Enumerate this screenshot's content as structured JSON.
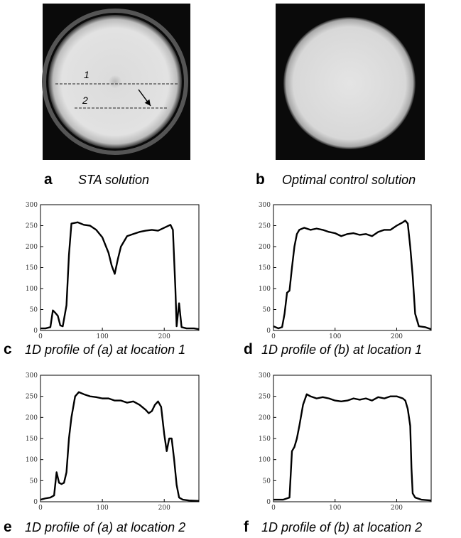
{
  "images": [
    {
      "letter": "a",
      "caption": "STA solution",
      "line_labels": [
        "1",
        "2"
      ]
    },
    {
      "letter": "b",
      "caption": "Optimal control solution"
    }
  ],
  "chart_data": [
    {
      "type": "line",
      "letter": "c",
      "caption": "1D profile of (a) at location 1",
      "color": "#000000",
      "xlim": [
        0,
        256
      ],
      "ylim": [
        0,
        300
      ],
      "xticks": [
        0,
        100,
        200
      ],
      "yticks": [
        0,
        50,
        100,
        150,
        200,
        250,
        300
      ],
      "x": [
        0,
        8,
        16,
        20,
        24,
        28,
        32,
        36,
        42,
        46,
        50,
        60,
        70,
        80,
        90,
        100,
        110,
        115,
        120,
        125,
        130,
        140,
        150,
        160,
        170,
        180,
        190,
        200,
        210,
        214,
        218,
        220,
        224,
        228,
        236,
        248,
        256
      ],
      "values": [
        5,
        5,
        8,
        48,
        42,
        35,
        12,
        10,
        60,
        180,
        255,
        258,
        252,
        250,
        240,
        222,
        185,
        155,
        135,
        170,
        200,
        225,
        230,
        235,
        238,
        240,
        238,
        245,
        252,
        240,
        100,
        10,
        65,
        8,
        5,
        5,
        3
      ]
    },
    {
      "type": "line",
      "letter": "d",
      "caption": "1D profile of (b) at location 1",
      "color": "#000000",
      "xlim": [
        0,
        256
      ],
      "ylim": [
        0,
        300
      ],
      "xticks": [
        0,
        100,
        200
      ],
      "yticks": [
        0,
        50,
        100,
        150,
        200,
        250,
        300
      ],
      "x": [
        0,
        8,
        14,
        18,
        22,
        26,
        30,
        34,
        38,
        42,
        50,
        60,
        70,
        80,
        90,
        100,
        110,
        120,
        130,
        140,
        150,
        160,
        170,
        180,
        190,
        200,
        210,
        214,
        218,
        222,
        226,
        230,
        236,
        246,
        256
      ],
      "values": [
        10,
        5,
        8,
        40,
        90,
        95,
        150,
        200,
        230,
        240,
        245,
        240,
        243,
        240,
        235,
        232,
        225,
        230,
        232,
        228,
        230,
        225,
        235,
        240,
        240,
        250,
        258,
        262,
        255,
        200,
        130,
        40,
        10,
        8,
        3
      ]
    },
    {
      "type": "line",
      "letter": "e",
      "caption": "1D profile of (a) at location 2",
      "color": "#000000",
      "xlim": [
        0,
        256
      ],
      "ylim": [
        0,
        300
      ],
      "xticks": [
        0,
        100,
        200
      ],
      "yticks": [
        0,
        50,
        100,
        150,
        200,
        250,
        300
      ],
      "x": [
        0,
        8,
        16,
        22,
        26,
        30,
        34,
        38,
        42,
        46,
        50,
        56,
        62,
        70,
        80,
        90,
        100,
        110,
        120,
        130,
        140,
        150,
        160,
        170,
        175,
        180,
        185,
        190,
        195,
        200,
        204,
        208,
        212,
        216,
        220,
        224,
        230,
        240,
        256
      ],
      "values": [
        5,
        8,
        10,
        15,
        70,
        45,
        42,
        45,
        70,
        150,
        200,
        250,
        260,
        255,
        250,
        248,
        245,
        245,
        240,
        240,
        235,
        238,
        230,
        218,
        210,
        215,
        230,
        238,
        225,
        160,
        120,
        150,
        150,
        100,
        40,
        10,
        5,
        3,
        2
      ]
    },
    {
      "type": "line",
      "letter": "f",
      "caption": "1D profile of (b) at location 2",
      "color": "#000000",
      "xlim": [
        0,
        256
      ],
      "ylim": [
        0,
        300
      ],
      "xticks": [
        0,
        100,
        200
      ],
      "yticks": [
        0,
        50,
        100,
        150,
        200,
        250,
        300
      ],
      "x": [
        0,
        8,
        16,
        22,
        26,
        30,
        34,
        38,
        42,
        48,
        54,
        60,
        70,
        80,
        90,
        100,
        110,
        120,
        130,
        140,
        150,
        160,
        170,
        180,
        190,
        200,
        210,
        214,
        218,
        222,
        224,
        226,
        230,
        240,
        256
      ],
      "values": [
        5,
        5,
        5,
        8,
        10,
        120,
        130,
        150,
        180,
        230,
        255,
        250,
        245,
        248,
        245,
        240,
        238,
        240,
        245,
        242,
        245,
        240,
        248,
        245,
        250,
        250,
        245,
        240,
        220,
        180,
        80,
        20,
        10,
        5,
        3
      ]
    }
  ]
}
